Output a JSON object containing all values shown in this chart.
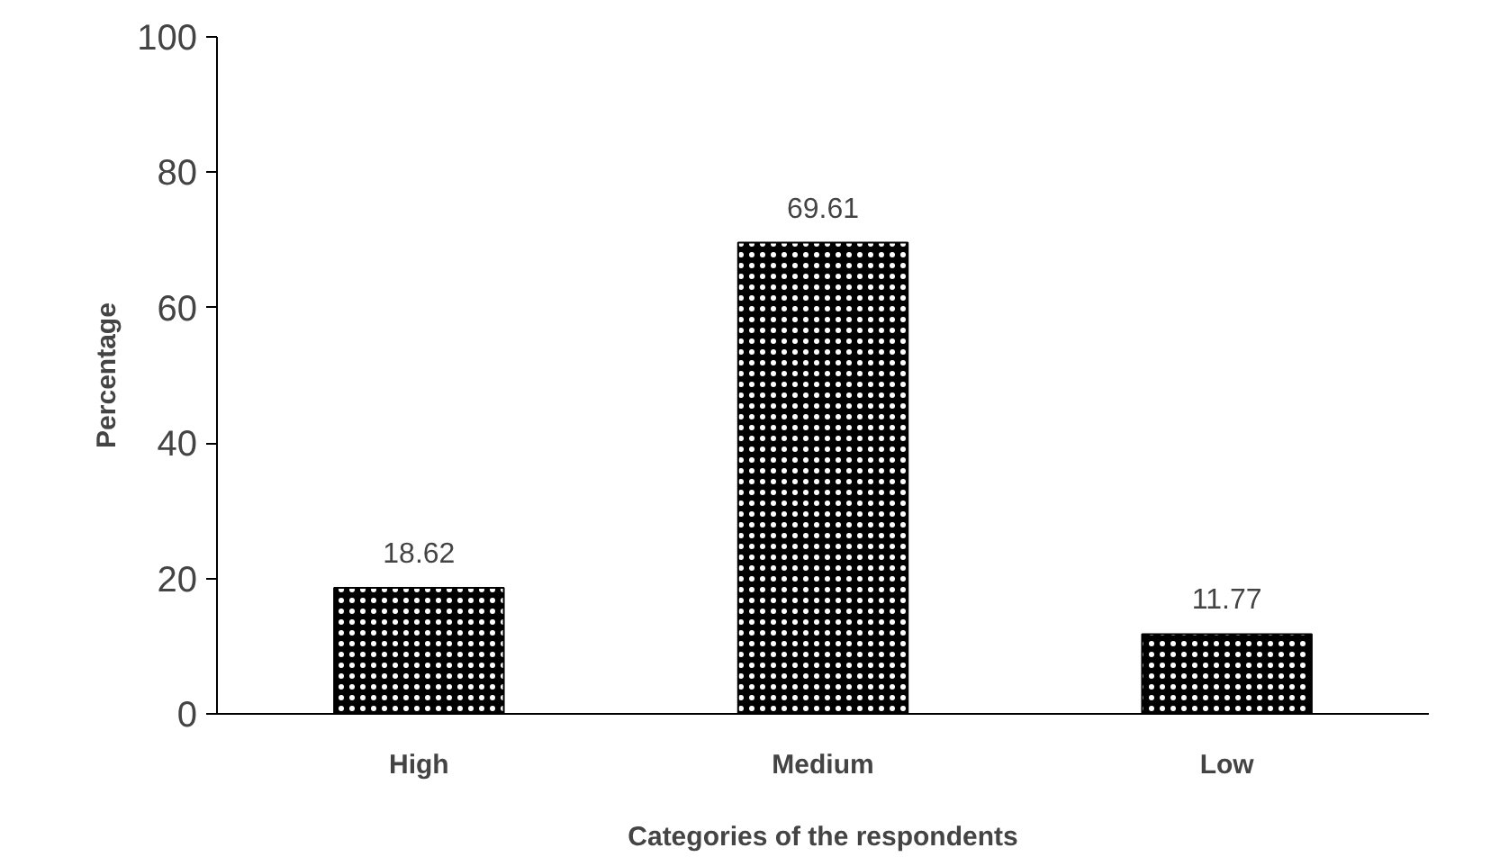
{
  "chart_data": {
    "type": "bar",
    "xlabel": "Categories of the respondents",
    "ylabel": "Percentage",
    "categories": [
      "High",
      "Medium",
      "Low"
    ],
    "values": [
      18.62,
      69.61,
      11.77
    ],
    "color": "#000000",
    "ylim": [
      0,
      100
    ],
    "yticks": [
      0,
      20,
      40,
      60,
      80,
      100
    ],
    "data_labels": true,
    "grid": false
  }
}
